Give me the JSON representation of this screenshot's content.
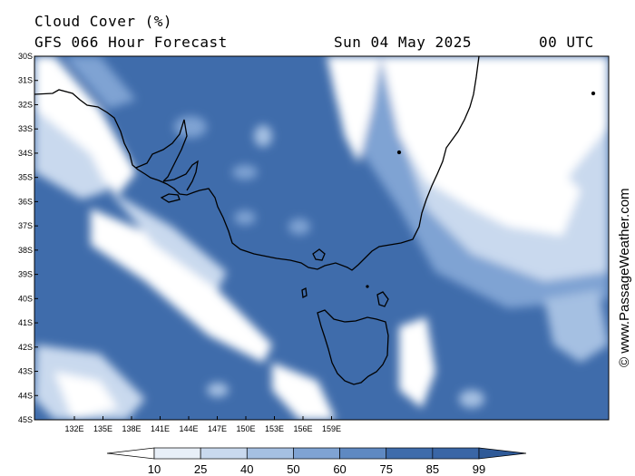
{
  "header": {
    "title": "Cloud Cover (%)",
    "model_line": "GFS 066 Hour Forecast",
    "date": "Sun 04 May 2025",
    "time": "00 UTC"
  },
  "map": {
    "lat_labels": [
      "30S",
      "31S",
      "32S",
      "33S",
      "34S",
      "35S",
      "36S",
      "37S",
      "38S",
      "39S",
      "40S",
      "41S",
      "42S",
      "43S",
      "44S",
      "45S"
    ],
    "lon_labels": [
      "132E",
      "135E",
      "138E",
      "141E",
      "144E",
      "147E",
      "150E",
      "153E",
      "156E",
      "159E"
    ],
    "colors": {
      "clear": "#ffffff",
      "c10": "#e8eff8",
      "c25": "#c9d9ee",
      "c40": "#a5c0e2",
      "c50": "#7fa3d3",
      "c60": "#5f89c2",
      "c75": "#3f6cab",
      "coast": "#000000"
    }
  },
  "colorbar": {
    "labels": [
      "10",
      "25",
      "40",
      "50",
      "60",
      "75",
      "85",
      "99"
    ],
    "colors": [
      "#ffffff",
      "#e8eff8",
      "#c9d9ee",
      "#a5c0e2",
      "#7fa3d3",
      "#5f89c2",
      "#3f6cab",
      "#3a66a6",
      "#2f5a98"
    ]
  },
  "watermark": "© www.PassageWeather.com"
}
